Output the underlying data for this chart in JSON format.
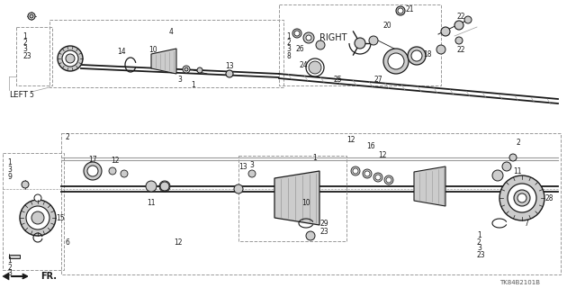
{
  "bg_color": "#ffffff",
  "diagram_code": "TK84B2101B",
  "right_label": "RIGHT",
  "left_label": "LEFT",
  "fr_label": "FR.",
  "line_color": "#1a1a1a",
  "gray_color": "#888888",
  "light_gray": "#cccccc",
  "mid_gray": "#999999"
}
